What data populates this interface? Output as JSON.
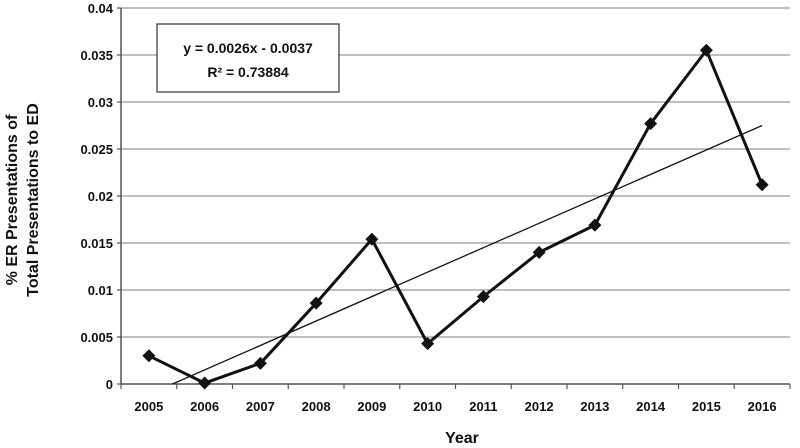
{
  "chart_data": {
    "type": "line",
    "title": "",
    "xlabel": "Year",
    "ylabel_lines": [
      "% ER Presentations of",
      "Total Presentations to ED"
    ],
    "categories": [
      "2005",
      "2006",
      "2007",
      "2008",
      "2009",
      "2010",
      "2011",
      "2012",
      "2013",
      "2014",
      "2015",
      "2016"
    ],
    "series": [
      {
        "values": [
          0.003,
          0.0001,
          0.0022,
          0.0086,
          0.0154,
          0.0043,
          0.0093,
          0.014,
          0.0169,
          0.0277,
          0.0355,
          0.0212
        ]
      }
    ],
    "trendline": {
      "type": "linear",
      "slope": 0.0026,
      "intercept": -0.0037
    },
    "annotation": {
      "equation": "y = 0.0026x - 0.0037",
      "r_squared": "R² = 0.73884"
    },
    "y_ticks": [
      "0",
      "0.005",
      "0.01",
      "0.015",
      "0.02",
      "0.025",
      "0.03",
      "0.035",
      "0.04"
    ],
    "ylim": [
      0,
      0.04
    ],
    "grid": true,
    "legend": "none",
    "marker": "diamond",
    "colors": {
      "line": "#111111",
      "grid": "#999999",
      "axis": "#555555"
    }
  }
}
